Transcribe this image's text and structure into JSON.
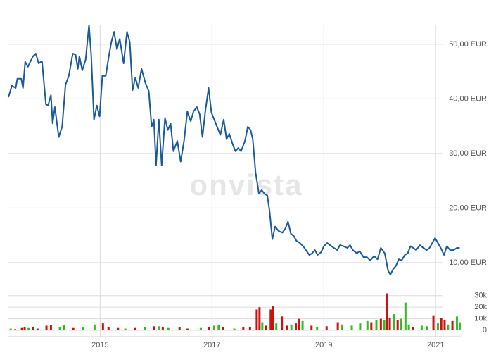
{
  "chart_data": [
    {
      "type": "line",
      "color": "#1a5a9a",
      "watermark": "onvista",
      "grid": true,
      "xlim": [
        2013.36,
        2021.45
      ],
      "xticks": [
        2015,
        2017,
        2019,
        2021
      ],
      "ylim": [
        6.5,
        53.6
      ],
      "yticks": [
        {
          "value": 10,
          "label": "10,00 EUR"
        },
        {
          "value": 20,
          "label": "20,00 EUR"
        },
        {
          "value": 30,
          "label": "30,00 EUR"
        },
        {
          "value": 40,
          "label": "40,00 EUR"
        },
        {
          "value": 50,
          "label": "50,00 EUR"
        }
      ],
      "x": [
        2013.36,
        2013.42,
        2013.49,
        2013.52,
        2013.59,
        2013.62,
        2013.66,
        2013.71,
        2013.75,
        2013.8,
        2013.85,
        2013.9,
        2013.96,
        2014.03,
        2014.07,
        2014.12,
        2014.15,
        2014.19,
        2014.26,
        2014.32,
        2014.38,
        2014.44,
        2014.51,
        2014.56,
        2014.6,
        2014.63,
        2014.68,
        2014.74,
        2014.8,
        2014.84,
        2014.89,
        2014.94,
        2014.99,
        2015.04,
        2015.1,
        2015.15,
        2015.2,
        2015.25,
        2015.3,
        2015.35,
        2015.42,
        2015.48,
        2015.53,
        2015.58,
        2015.63,
        2015.68,
        2015.74,
        2015.81,
        2015.87,
        2015.92,
        2015.96,
        2016.0,
        2016.05,
        2016.1,
        2016.16,
        2016.21,
        2016.26,
        2016.31,
        2016.38,
        2016.44,
        2016.5,
        2016.56,
        2016.62,
        2016.67,
        2016.73,
        2016.78,
        2016.83,
        2016.88,
        2016.94,
        2016.99,
        2017.04,
        2017.09,
        2017.15,
        2017.21,
        2017.26,
        2017.31,
        2017.37,
        2017.42,
        2017.47,
        2017.52,
        2017.59,
        2017.64,
        2017.69,
        2017.73,
        2017.78,
        2017.84,
        2017.89,
        2017.94,
        2017.99,
        2018.03,
        2018.08,
        2018.13,
        2018.19,
        2018.26,
        2018.31,
        2018.36,
        2018.41,
        2018.46,
        2018.51,
        2018.57,
        2018.63,
        2018.68,
        2018.74,
        2018.79,
        2018.84,
        2018.89,
        2018.95,
        2019.0,
        2019.06,
        2019.11,
        2019.18,
        2019.24,
        2019.29,
        2019.35,
        2019.42,
        2019.47,
        2019.52,
        2019.59,
        2019.64,
        2019.71,
        2019.77,
        2019.83,
        2019.9,
        2019.96,
        2020.02,
        2020.09,
        2020.15,
        2020.19,
        2020.24,
        2020.29,
        2020.34,
        2020.39,
        2020.45,
        2020.5,
        2020.55,
        2020.6,
        2020.65,
        2020.72,
        2020.78,
        2020.84,
        2020.89,
        2020.94,
        2020.99,
        2021.04,
        2021.09,
        2021.15,
        2021.2,
        2021.26,
        2021.32,
        2021.38,
        2021.43
      ],
      "values": [
        40.3,
        42.4,
        42.0,
        43.7,
        43.7,
        42.0,
        46.8,
        45.9,
        46.8,
        47.8,
        48.3,
        46.5,
        46.9,
        39.0,
        38.8,
        40.7,
        35.5,
        38.5,
        33.0,
        34.9,
        42.6,
        44.2,
        48.3,
        48.1,
        45.5,
        47.8,
        45.2,
        47.2,
        53.5,
        48.1,
        36.2,
        38.8,
        36.8,
        44.2,
        44.2,
        47.5,
        50.4,
        52.3,
        49.1,
        51.0,
        46.5,
        52.3,
        50.4,
        41.6,
        43.9,
        42.0,
        45.5,
        42.9,
        41.4,
        34.9,
        36.2,
        27.8,
        36.2,
        27.8,
        36.5,
        34.3,
        35.5,
        30.4,
        32.3,
        28.5,
        32.3,
        37.7,
        35.9,
        37.7,
        38.5,
        37.2,
        33.0,
        37.7,
        42.0,
        37.5,
        36.2,
        34.9,
        33.4,
        36.2,
        32.6,
        33.6,
        31.7,
        30.4,
        31.0,
        30.4,
        32.3,
        34.9,
        34.3,
        32.6,
        26.5,
        22.6,
        23.3,
        22.6,
        22.3,
        19.4,
        14.3,
        16.6,
        15.8,
        15.5,
        16.2,
        17.5,
        15.3,
        14.9,
        14.0,
        13.6,
        13.0,
        12.3,
        11.4,
        11.7,
        12.3,
        11.4,
        11.9,
        13.0,
        13.6,
        13.2,
        12.7,
        12.3,
        13.2,
        13.0,
        12.7,
        13.2,
        12.3,
        11.7,
        12.1,
        11.0,
        11.0,
        10.4,
        11.2,
        10.6,
        12.7,
        11.7,
        8.5,
        7.8,
        8.8,
        9.4,
        10.6,
        10.4,
        11.4,
        11.7,
        13.0,
        12.7,
        12.3,
        13.2,
        12.7,
        12.3,
        12.7,
        13.6,
        14.5,
        13.6,
        12.7,
        11.4,
        13.0,
        12.3,
        12.3,
        12.7,
        12.7
      ]
    },
    {
      "type": "bar",
      "xlim": [
        2013.36,
        2021.45
      ],
      "ylim": [
        0,
        39000
      ],
      "yticks": [
        0,
        {
          "value": 10000,
          "label": "10k"
        },
        {
          "value": 20000,
          "label": "20k"
        },
        {
          "value": 30000,
          "label": "30k"
        }
      ],
      "x": [
        2013.4,
        2013.48,
        2013.6,
        2013.65,
        2013.72,
        2013.8,
        2013.88,
        2014.04,
        2014.12,
        2014.28,
        2014.36,
        2014.52,
        2014.7,
        2014.9,
        2015.05,
        2015.15,
        2015.32,
        2015.45,
        2015.62,
        2015.8,
        2015.96,
        2016.06,
        2016.12,
        2016.22,
        2016.42,
        2016.56,
        2016.8,
        2016.95,
        2017.04,
        2017.12,
        2017.2,
        2017.4,
        2017.56,
        2017.68,
        2017.8,
        2017.85,
        2017.9,
        2017.96,
        2018.05,
        2018.09,
        2018.15,
        2018.25,
        2018.34,
        2018.42,
        2018.5,
        2018.56,
        2018.62,
        2018.78,
        2018.88,
        2019.05,
        2019.25,
        2019.32,
        2019.5,
        2019.65,
        2019.78,
        2019.85,
        2019.94,
        2020.02,
        2020.08,
        2020.13,
        2020.18,
        2020.25,
        2020.32,
        2020.38,
        2020.46,
        2020.52,
        2020.6,
        2020.75,
        2020.85,
        2020.96,
        2021.04,
        2021.1,
        2021.16,
        2021.22,
        2021.3,
        2021.38,
        2021.43
      ],
      "values": [
        1500,
        1000,
        2000,
        3000,
        2000,
        2500,
        1500,
        4000,
        4500,
        3000,
        4500,
        2000,
        2500,
        5000,
        6000,
        3000,
        2000,
        1500,
        2000,
        2500,
        3500,
        3500,
        3000,
        2000,
        2500,
        1500,
        2000,
        3000,
        4000,
        5000,
        2500,
        1500,
        2500,
        3000,
        18000,
        20000,
        7000,
        4000,
        18000,
        21000,
        6000,
        12000,
        4000,
        5000,
        6000,
        10000,
        8000,
        4000,
        2500,
        3500,
        7000,
        5000,
        4000,
        6000,
        8000,
        7000,
        9000,
        10000,
        9000,
        32000,
        11000,
        14000,
        9000,
        10000,
        24000,
        5000,
        3000,
        4000,
        3500,
        13000,
        6000,
        11000,
        9000,
        5000,
        8000,
        12000,
        7000
      ],
      "colors": [
        "#33bb22",
        "#cc1111",
        "#cc1111",
        "#cc1111",
        "#33bb22",
        "#cc1111",
        "#cc1111",
        "#cc1111",
        "#cc1111",
        "#33bb22",
        "#33bb22",
        "#cc1111",
        "#33bb22",
        "#33bb22",
        "#cc1111",
        "#cc1111",
        "#cc1111",
        "#33bb22",
        "#cc1111",
        "#33bb22",
        "#cc1111",
        "#33bb22",
        "#cc1111",
        "#33bb22",
        "#cc1111",
        "#cc1111",
        "#33bb22",
        "#cc1111",
        "#33bb22",
        "#33bb22",
        "#cc1111",
        "#33bb22",
        "#cc1111",
        "#cc1111",
        "#cc1111",
        "#cc1111",
        "#33bb22",
        "#cc1111",
        "#cc1111",
        "#cc1111",
        "#33bb22",
        "#cc1111",
        "#cc1111",
        "#33bb22",
        "#cc1111",
        "#cc1111",
        "#33bb22",
        "#cc1111",
        "#33bb22",
        "#cc1111",
        "#cc1111",
        "#33bb22",
        "#33bb22",
        "#33bb22",
        "#33bb22",
        "#cc1111",
        "#33bb22",
        "#cc1111",
        "#33bb22",
        "#cc1111",
        "#cc1111",
        "#33bb22",
        "#cc1111",
        "#33bb22",
        "#33bb22",
        "#33bb22",
        "#cc1111",
        "#33bb22",
        "#33bb22",
        "#cc1111",
        "#33bb22",
        "#cc1111",
        "#cc1111",
        "#33bb22",
        "#cc1111",
        "#33bb22",
        "#33bb22"
      ]
    }
  ]
}
